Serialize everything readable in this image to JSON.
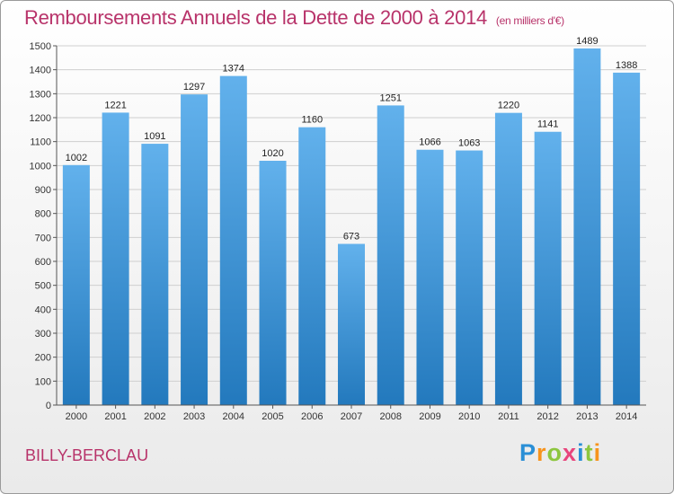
{
  "title": "Remboursements Annuels de la Dette de 2000 à 2014",
  "units": "(en milliers d'€)",
  "commune": "BILLY-BERCLAU",
  "logo": {
    "text": "Proxiti",
    "colors": [
      "#2a8fd6",
      "#f7941d",
      "#8dc63f",
      "#e8457c",
      "#2a8fd6",
      "#8dc63f",
      "#f7941d"
    ]
  },
  "colors": {
    "bar_light": "#62b1ec",
    "bar_dark": "#2379bd",
    "grid": "#cfcfcf",
    "title": "#b8336a"
  },
  "chart_data": {
    "type": "bar",
    "categories": [
      "2000",
      "2001",
      "2002",
      "2003",
      "2004",
      "2005",
      "2006",
      "2007",
      "2008",
      "2009",
      "2010",
      "2011",
      "2012",
      "2013",
      "2014"
    ],
    "values": [
      1002,
      1221,
      1091,
      1297,
      1374,
      1020,
      1160,
      673,
      1251,
      1066,
      1063,
      1220,
      1141,
      1489,
      1388
    ],
    "ylim": [
      0,
      1500
    ],
    "yticks": [
      0,
      100,
      200,
      300,
      400,
      500,
      600,
      700,
      800,
      900,
      1000,
      1100,
      1200,
      1300,
      1400,
      1500
    ],
    "grid": true,
    "xlabel": "",
    "ylabel": ""
  }
}
